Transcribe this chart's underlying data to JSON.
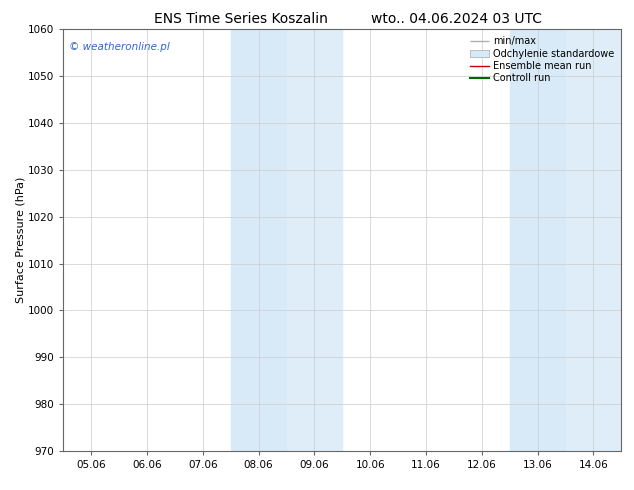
{
  "title_left": "ENS Time Series Koszalin",
  "title_right": "wto.. 04.06.2024 03 UTC",
  "ylabel": "Surface Pressure (hPa)",
  "ylim": [
    970,
    1060
  ],
  "yticks": [
    970,
    980,
    990,
    1000,
    1010,
    1020,
    1030,
    1040,
    1050,
    1060
  ],
  "xtick_labels": [
    "05.06",
    "06.06",
    "07.06",
    "08.06",
    "09.06",
    "10.06",
    "11.06",
    "12.06",
    "13.06",
    "14.06"
  ],
  "xtick_positions": [
    0,
    1,
    2,
    3,
    4,
    5,
    6,
    7,
    8,
    9
  ],
  "xlim": [
    -0.5,
    9.5
  ],
  "shade_band1_col1": {
    "x_start": 2.5,
    "x_end": 3.5,
    "color": "#d8eaf7"
  },
  "shade_band1_col2": {
    "x_start": 3.5,
    "x_end": 4.5,
    "color": "#deedf8"
  },
  "shade_band2_col1": {
    "x_start": 7.5,
    "x_end": 8.5,
    "color": "#d8eaf7"
  },
  "shade_band2_col2": {
    "x_start": 8.5,
    "x_end": 9.5,
    "color": "#deedf8"
  },
  "legend_entries": [
    {
      "label": "min/max",
      "color": "#b0b0b0",
      "type": "line"
    },
    {
      "label": "Odchylenie standardowe",
      "color": "#d8eaf7",
      "type": "fill"
    },
    {
      "label": "Ensemble mean run",
      "color": "#cc0000",
      "type": "line"
    },
    {
      "label": "Controll run",
      "color": "#006600",
      "type": "line"
    }
  ],
  "watermark": "© weatheronline.pl",
  "watermark_color": "#3366cc",
  "background_color": "#ffffff",
  "plot_bg_color": "#ffffff",
  "grid_color": "#cccccc",
  "border_color": "#666666",
  "title_fontsize": 10,
  "ylabel_fontsize": 8,
  "tick_fontsize": 7.5,
  "legend_fontsize": 7,
  "watermark_fontsize": 7.5
}
